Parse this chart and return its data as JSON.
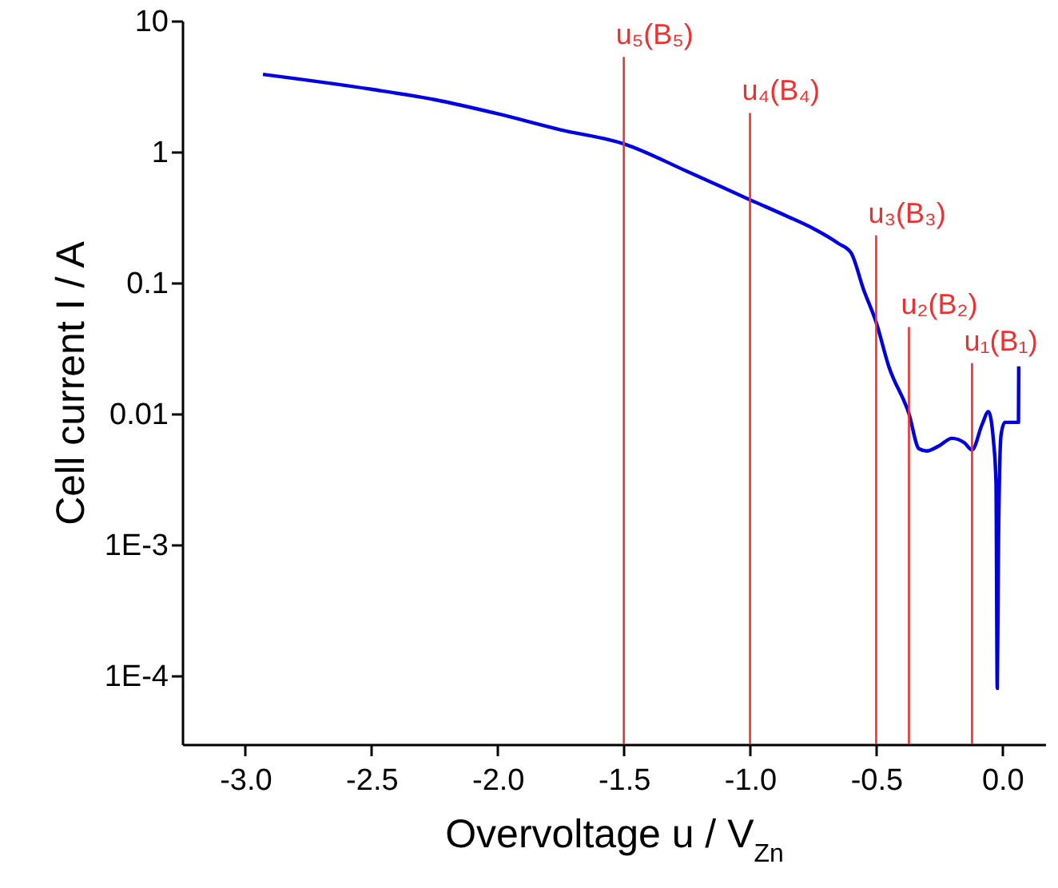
{
  "chart_data": {
    "type": "line",
    "xlabel": "Overvoltage u / V$_{Zn}$",
    "ylabel": "Cell current I / A",
    "log": "y",
    "grid": false,
    "marker": "none",
    "line_style": "solid",
    "xlim": [
      -3.25,
      0.17
    ],
    "ylim": [
      3e-05,
      10
    ],
    "xticks": [
      {
        "value": -3,
        "label": "-3.0"
      },
      {
        "value": -2.5,
        "label": "-2.5"
      },
      {
        "value": -2,
        "label": "-2.0"
      },
      {
        "value": -1.5,
        "label": "-1.5"
      },
      {
        "value": -1,
        "label": "-1.0"
      },
      {
        "value": -0.5,
        "label": "-0.5"
      },
      {
        "value": 0,
        "label": "0.0"
      }
    ],
    "yticks": [
      {
        "value": 0.0001,
        "label": "1E-4"
      },
      {
        "value": 0.001,
        "label": "1E-3"
      },
      0.01,
      0.1,
      1,
      10
    ],
    "x": [
      -2.93,
      -2.5,
      -2.25,
      -2.0,
      -1.75,
      -1.5,
      -1.25,
      -1.0,
      -0.85,
      -0.75,
      -0.65,
      -0.6,
      -0.55,
      -0.5,
      -0.45,
      -0.37,
      -0.33,
      -0.3,
      -0.25,
      -0.2,
      -0.15,
      -0.12,
      -0.08,
      -0.055,
      -0.035,
      -0.025,
      -0.02,
      -0.015,
      -0.005,
      0.01,
      0.064,
      0.065
    ],
    "series": [
      {
        "color": "#0000e0",
        "values": [
          3.9,
          3.0,
          2.5,
          1.95,
          1.47,
          1.15,
          0.71,
          0.43,
          0.32,
          0.26,
          0.2,
          0.17,
          0.089,
          0.05,
          0.023,
          0.01,
          0.0054,
          0.0052,
          0.0057,
          0.0065,
          0.006,
          0.0053,
          0.0083,
          0.0104,
          0.0062,
          0.003,
          8e-05,
          0.0011,
          0.0069,
          0.0086,
          0.0086,
          0.023
        ]
      }
    ],
    "ref_lines": [
      {
        "axis": "x",
        "value": -1.5,
        "label": "u₅(B₅)",
        "color": "#f03030"
      },
      {
        "axis": "x",
        "value": -1.0,
        "label": "u₄(B₄)",
        "color": "#f03030"
      },
      {
        "axis": "x",
        "value": -0.5,
        "label": "u₃(B₃)",
        "color": "#f03030"
      },
      {
        "axis": "x",
        "value": -0.37,
        "label": "u₂(B₂)",
        "color": "#f03030"
      },
      {
        "axis": "x",
        "value": -0.12,
        "label": "u₁(B₁)",
        "color": "#f03030"
      }
    ]
  }
}
